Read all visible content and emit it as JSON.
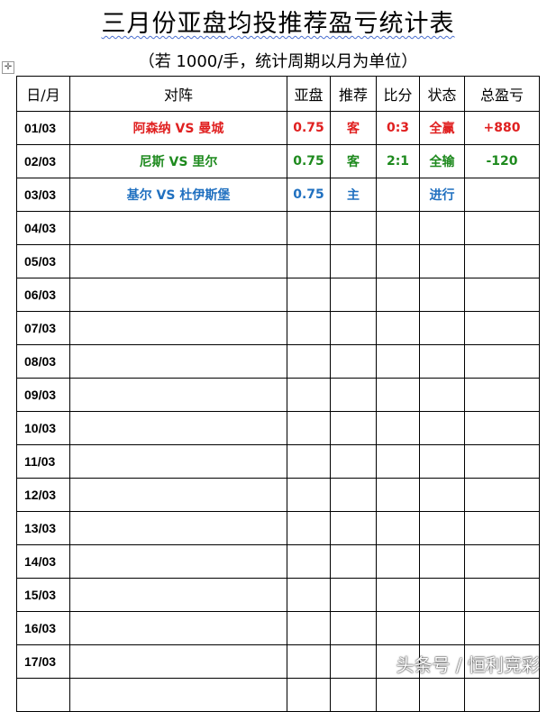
{
  "title": "三月份亚盘均投推荐盈亏统计表",
  "subtitle": "（若 1000/手，统计周期以月为单位）",
  "headers": [
    "日/月",
    "对阵",
    "亚盘",
    "推荐",
    "比分",
    "状态",
    "总盈亏"
  ],
  "rows": [
    {
      "date": "01/03",
      "match": "阿森纳 VS 曼城",
      "line": "0.75",
      "pick": "客",
      "score": "0:3",
      "status": "全赢",
      "pl": "+880",
      "color": "#e02020"
    },
    {
      "date": "02/03",
      "match": "尼斯 VS 里尔",
      "line": "0.75",
      "pick": "客",
      "score": "2:1",
      "status": "全输",
      "pl": "-120",
      "color": "#1e8a1e"
    },
    {
      "date": "03/03",
      "match": "基尔 VS 杜伊斯堡",
      "line": "0.75",
      "pick": "主",
      "score": "",
      "status": "进行",
      "pl": "",
      "color": "#2070c0"
    },
    {
      "date": "04/03"
    },
    {
      "date": "05/03"
    },
    {
      "date": "06/03"
    },
    {
      "date": "07/03"
    },
    {
      "date": "08/03"
    },
    {
      "date": "09/03"
    },
    {
      "date": "10/03"
    },
    {
      "date": "11/03"
    },
    {
      "date": "12/03"
    },
    {
      "date": "13/03"
    },
    {
      "date": "14/03"
    },
    {
      "date": "15/03"
    },
    {
      "date": "16/03"
    },
    {
      "date": "17/03"
    },
    {
      "date": ""
    }
  ],
  "watermark": "头条号 / 恒利竞彩"
}
